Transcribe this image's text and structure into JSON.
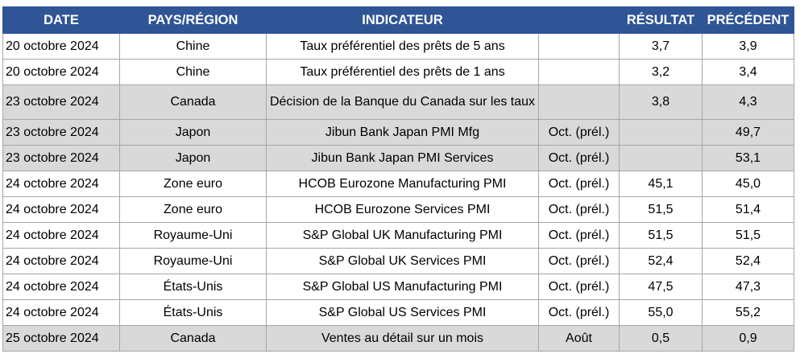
{
  "table": {
    "headers": [
      "DATE",
      "PAYS/RÉGION",
      "INDICATEUR",
      "RÉSULTAT",
      "PRÉCÉDENT"
    ],
    "rows": [
      {
        "date": "20 octobre 2024",
        "country": "Chine",
        "indicator": "Taux préférentiel des prêts de 5 ans",
        "result": "3,7",
        "previous": "3,9"
      },
      {
        "date": "20 octobre 2024",
        "country": "Chine",
        "indicator": "Taux préférentiel des prêts de 1 ans",
        "result": "3,2",
        "previous": "3,4"
      },
      {
        "date": "23 octobre 2024",
        "country": "Canada",
        "indicator": "Décision de la Banque du Canada sur les taux",
        "result": "3,8",
        "previous": "4,3"
      },
      {
        "date": "23 octobre 2024",
        "country": "Japon",
        "indicator": "Jibun Bank Japan PMI Mfg",
        "period": "Oct. (prél.)",
        "previous": "49,7"
      },
      {
        "date": "23 octobre 2024",
        "country": "Japon",
        "indicator": "Jibun Bank Japan PMI Services",
        "period": "Oct. (prél.)",
        "previous": "53,1"
      },
      {
        "date": "24 octobre 2024",
        "country": "Zone euro",
        "indicator": "HCOB Eurozone Manufacturing PMI",
        "period": "Oct. (prél.)",
        "result": "45,1",
        "previous": "45,0"
      },
      {
        "date": "24 octobre 2024",
        "country": "Zone euro",
        "indicator": "HCOB Eurozone Services PMI",
        "period": "Oct. (prél.)",
        "result": "51,5",
        "previous": "51,4"
      },
      {
        "date": "24 octobre 2024",
        "country": "Royaume-Uni",
        "indicator": "S&P Global UK Manufacturing PMI",
        "period": "Oct. (prél.)",
        "result": "51,5",
        "previous": "51,5"
      },
      {
        "date": "24 octobre 2024",
        "country": "Royaume-Uni",
        "indicator": "S&P Global UK Services PMI",
        "period": "Oct. (prél.)",
        "result": "52,4",
        "previous": "52,4"
      },
      {
        "date": "24 octobre 2024",
        "country": "États-Unis",
        "indicator": "S&P Global US Manufacturing PMI",
        "period": "Oct. (prél.)",
        "result": "47,5",
        "previous": "47,3"
      },
      {
        "date": "24 octobre 2024",
        "country": "États-Unis",
        "indicator": "S&P Global US Services PMI",
        "period": "Oct. (prél.)",
        "result": "55,0",
        "previous": "55,2"
      },
      {
        "date": "25 octobre 2024",
        "country": "Canada",
        "indicator": "Ventes au détail sur un mois",
        "period": "Août",
        "result": "0,5",
        "previous": "0,9"
      }
    ]
  }
}
